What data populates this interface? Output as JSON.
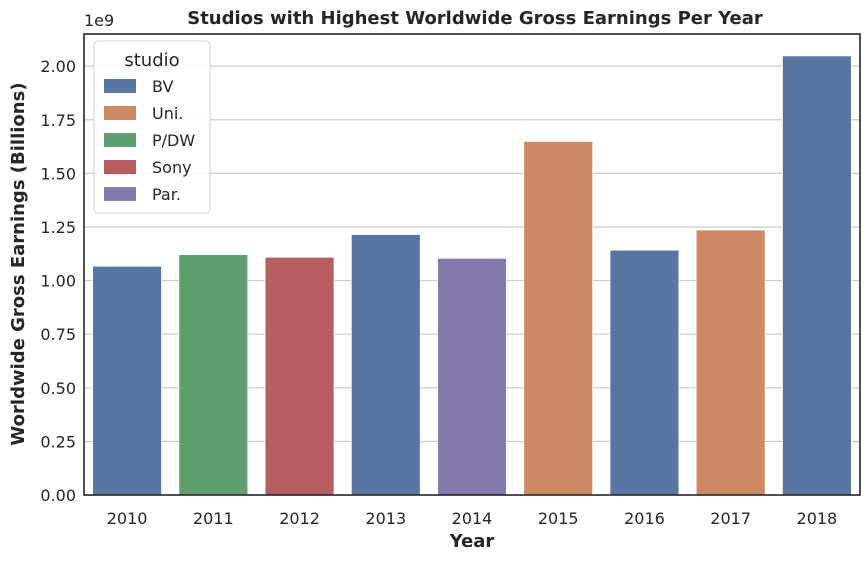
{
  "chart_data": {
    "type": "bar",
    "title": "Studios with Highest Worldwide Gross Earnings Per Year",
    "xlabel": "Year",
    "ylabel": "Worldwide Gross Earnings (Billions)",
    "offset_label": "1e9",
    "categories": [
      "2010",
      "2011",
      "2012",
      "2013",
      "2014",
      "2015",
      "2016",
      "2017",
      "2018"
    ],
    "values": [
      1.067,
      1.121,
      1.109,
      1.215,
      1.104,
      1.649,
      1.142,
      1.236,
      2.048
    ],
    "studios": [
      "BV",
      "P/DW",
      "Sony",
      "BV",
      "Par.",
      "Uni.",
      "BV",
      "Uni.",
      "BV"
    ],
    "ylim": [
      0,
      2.15
    ],
    "yticks": [
      "0.00",
      "0.25",
      "0.50",
      "0.75",
      "1.00",
      "1.25",
      "1.50",
      "1.75",
      "2.00"
    ],
    "grid": "horizontal",
    "legend": {
      "title": "studio",
      "placement": "top-left",
      "entries": [
        {
          "name": "BV",
          "color": "#5975a4"
        },
        {
          "name": "Uni.",
          "color": "#cc8963"
        },
        {
          "name": "P/DW",
          "color": "#5f9e6e"
        },
        {
          "name": "Sony",
          "color": "#b55d60"
        },
        {
          "name": "Par.",
          "color": "#857aab"
        }
      ]
    }
  }
}
